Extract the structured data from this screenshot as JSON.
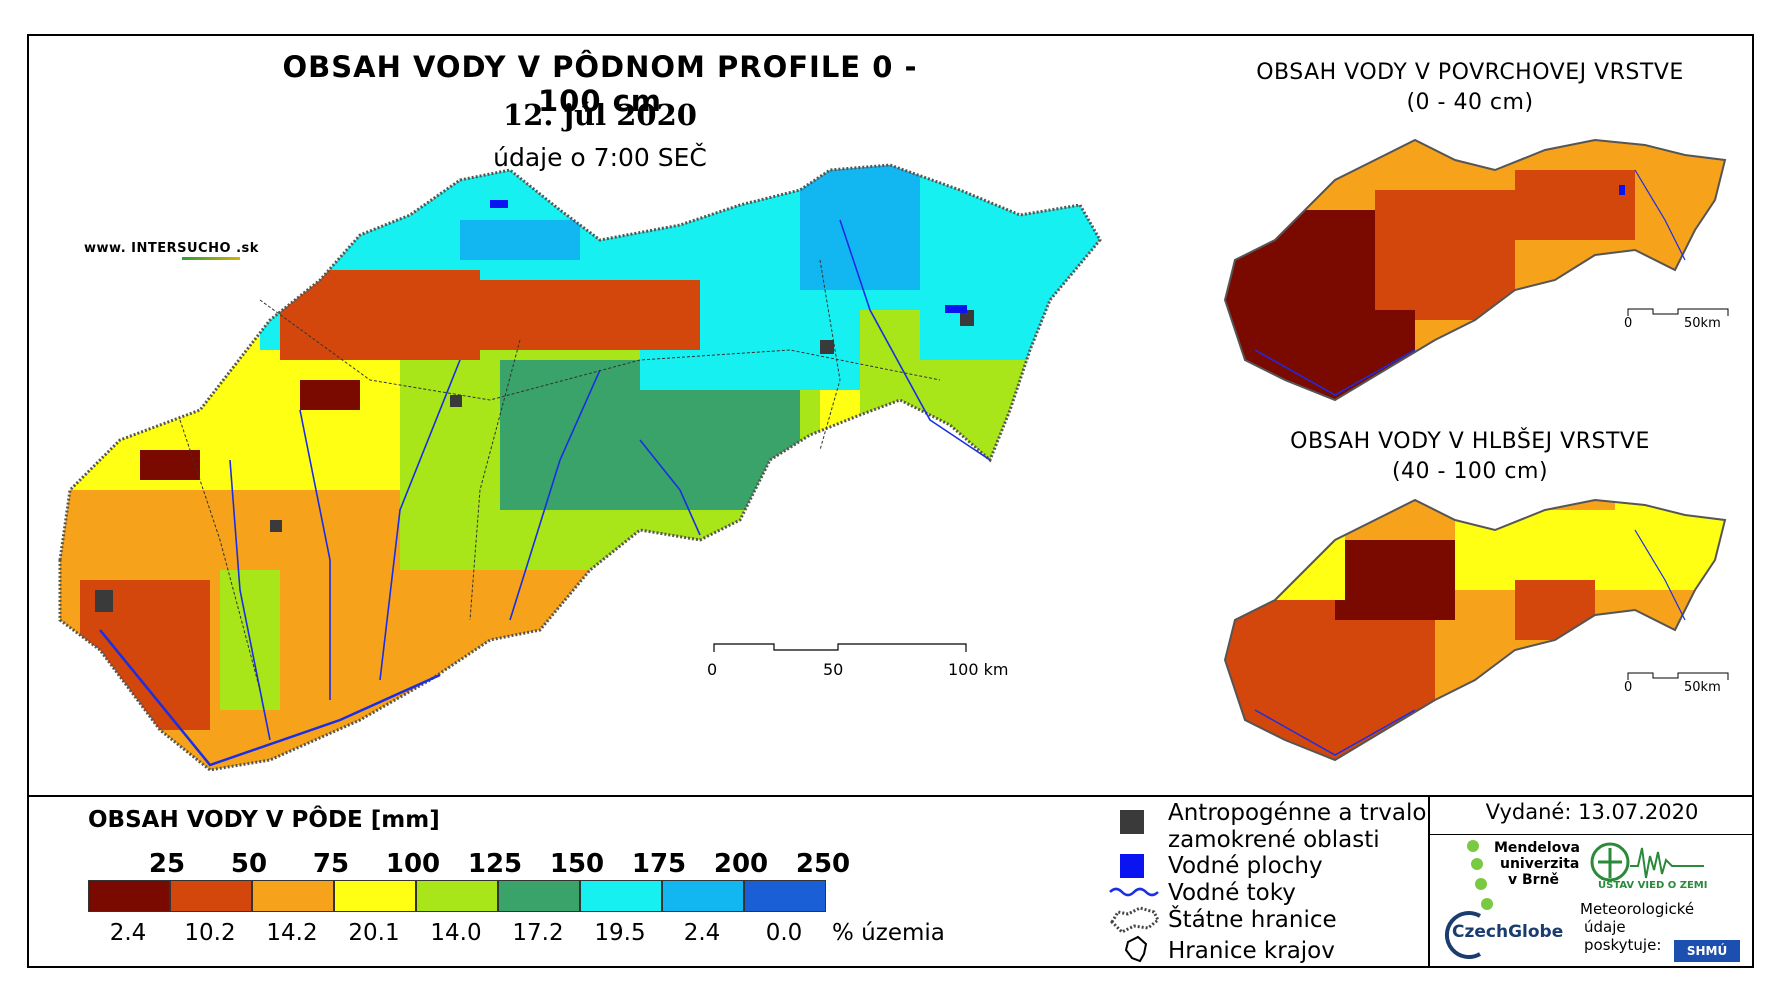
{
  "main": {
    "title": "OBSAH VODY V PÔDNOM PROFILE 0 - 100 cm",
    "date": "12. júl 2020",
    "time": "údaje o 7:00 SEČ",
    "site_prefix": "www. INTER",
    "site_brand": "SUCHO",
    "site_suffix": ".sk",
    "scale": {
      "l0": "0",
      "l1": "50",
      "l2": "100 km"
    }
  },
  "surface": {
    "title": "OBSAH VODY V POVRCHOVEJ VRSTVE",
    "range": "(0 - 40 cm)",
    "scale": {
      "l0": "0",
      "l1": "50km"
    }
  },
  "deep": {
    "title": "OBSAH VODY V HLBŠEJ VRSTVE",
    "range": "(40 - 100 cm)",
    "scale": {
      "l0": "0",
      "l1": "50km"
    }
  },
  "legend": {
    "title": "OBSAH VODY V PÔDE [mm]",
    "thresholds": [
      "25",
      "50",
      "75",
      "100",
      "125",
      "150",
      "175",
      "200",
      "250"
    ],
    "classes": [
      {
        "color": "#7a0a00",
        "percent": "2.4"
      },
      {
        "color": "#d4470c",
        "percent": "10.2"
      },
      {
        "color": "#f7a21b",
        "percent": "14.2"
      },
      {
        "color": "#ffff14",
        "percent": "20.1"
      },
      {
        "color": "#a8e61a",
        "percent": "14.0"
      },
      {
        "color": "#3aa36a",
        "percent": "17.2"
      },
      {
        "color": "#17f0f0",
        "percent": "19.5"
      },
      {
        "color": "#12b6f0",
        "percent": "2.4"
      },
      {
        "color": "#1b5fd6",
        "percent": "0.0"
      }
    ],
    "percent_unit": "% územia"
  },
  "key": {
    "urban_l1": "Antropogénne a trvalo",
    "urban_l2": "zamokrené oblasti",
    "water_bodies": "Vodné plochy",
    "rivers": "Vodné toky",
    "state_border": "Štátne hranice",
    "regions": "Hranice krajov",
    "colors": {
      "urban": "#3a3a3a",
      "water": "#0a14f0",
      "river": "#1a2ee6"
    }
  },
  "issued": "Vydané: 13.07.2020",
  "logos": {
    "mendel": [
      "Mendelova",
      "univerzita",
      "v Brně"
    ],
    "czechglobe": "CzechGlobe",
    "uvz": "ÚSTAV VIED O ZEMI",
    "meteo": [
      "Meteorologické",
      "údaje",
      "poskytuje:"
    ],
    "shmu": "SHMÚ"
  }
}
